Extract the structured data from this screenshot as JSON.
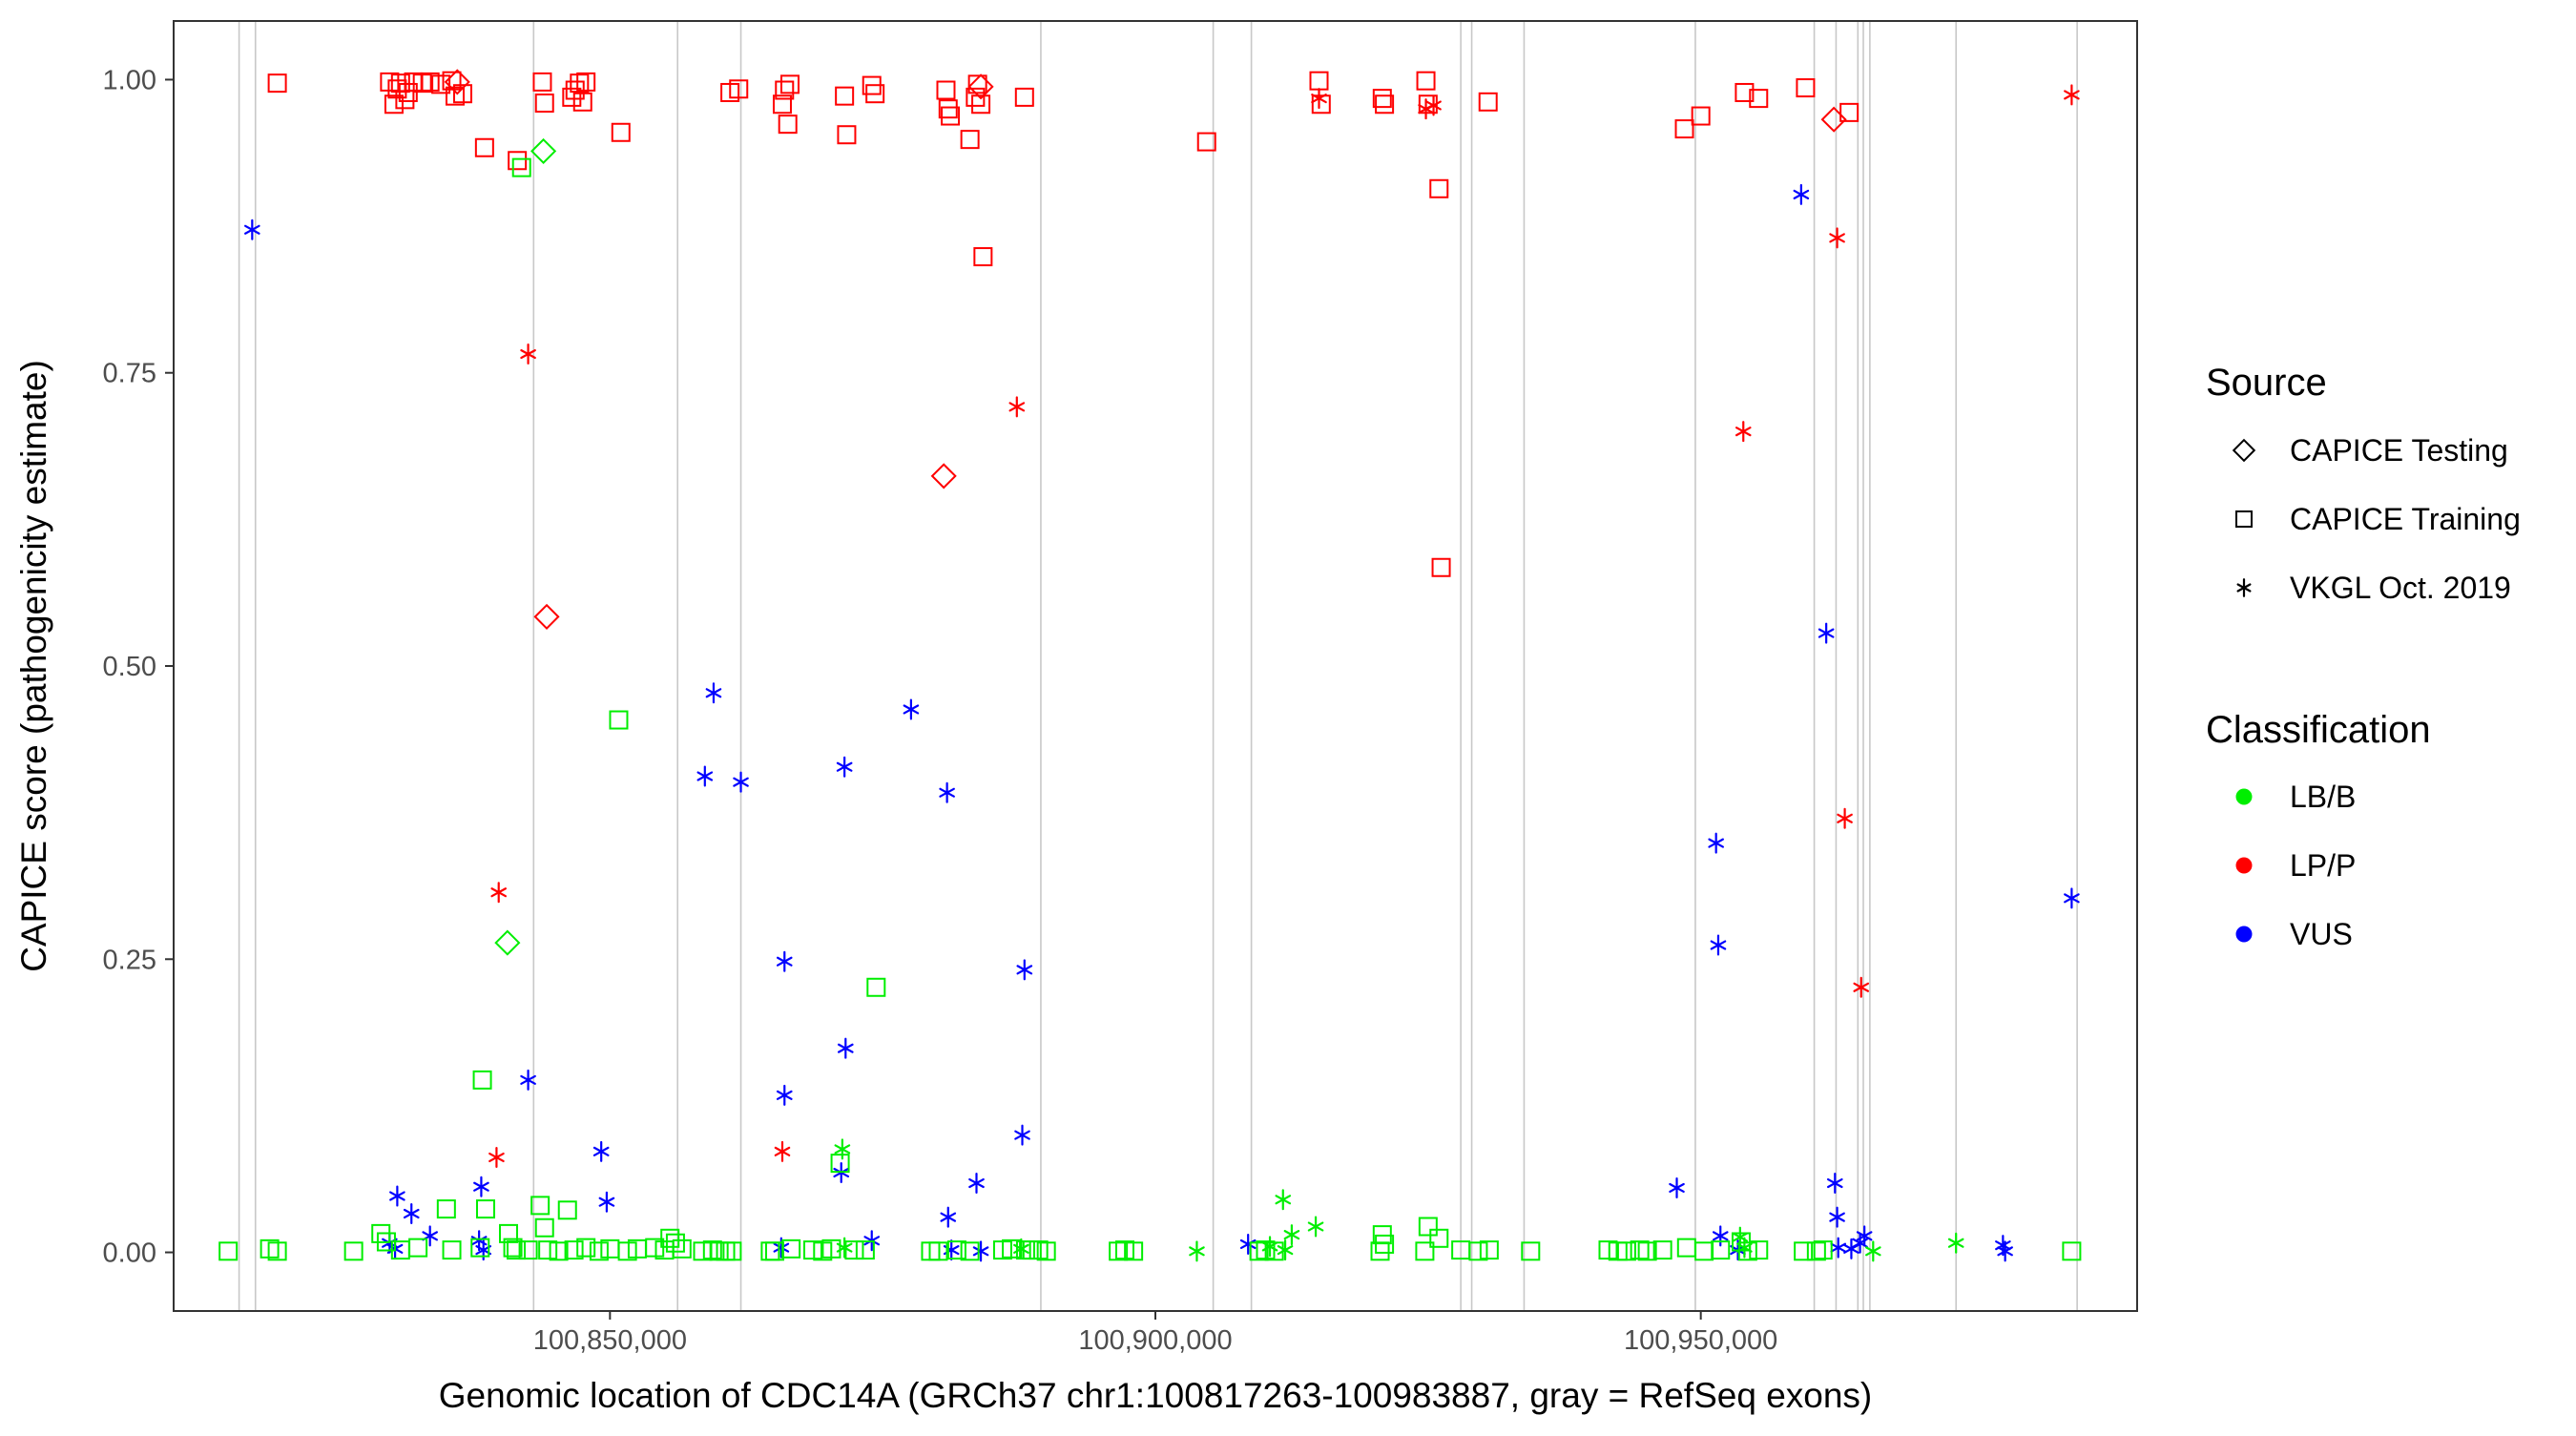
{
  "chart_data": {
    "type": "scatter",
    "title": "",
    "xlabel": "Genomic location of CDC14A (GRCh37 chr1:100817263-100983887, gray = RefSeq exons)",
    "ylabel": "CAPICE score (pathogenicity estimate)",
    "xlim": [
      100810000,
      100990000
    ],
    "ylim": [
      -0.05,
      1.05
    ],
    "x_ticks": [
      100850000,
      100900000,
      100950000
    ],
    "x_tick_labels": [
      "100,850,000",
      "100,900,000",
      "100,950,000"
    ],
    "y_ticks": [
      0.0,
      0.25,
      0.5,
      0.75,
      1.0
    ],
    "y_tick_labels": [
      "0.00",
      "0.25",
      "0.50",
      "0.75",
      "1.00"
    ],
    "grid": false,
    "exon_lines": [
      100816000,
      100817500,
      100843000,
      100856200,
      100862000,
      100889500,
      100905300,
      100908800,
      100928000,
      100929000,
      100933800,
      100949500,
      100960400,
      100962400,
      100964400,
      100964900,
      100965500,
      100973400,
      100984500
    ],
    "legend": {
      "source_title": "Source",
      "source_items": [
        {
          "label": "CAPICE Testing",
          "shape": "diamond"
        },
        {
          "label": "CAPICE Training",
          "shape": "square"
        },
        {
          "label": "VKGL Oct. 2019",
          "shape": "asterisk"
        }
      ],
      "class_title": "Classification",
      "class_items": [
        {
          "label": "LB/B",
          "color": "#00ee00"
        },
        {
          "label": "LP/P",
          "color": "#ff0000"
        },
        {
          "label": "VUS",
          "color": "#0000ff"
        }
      ],
      "placement": "right"
    },
    "series": [
      {
        "name": "CAPICE Training LP/P",
        "shape": "square",
        "color": "#ff0000",
        "x": [
          100819500,
          100829800,
          100830200,
          100830800,
          100831500,
          100832000,
          100832800,
          100833500,
          100834500,
          100835500,
          100836500,
          100830500,
          100831200,
          100835800,
          100838500,
          100841500,
          100843800,
          100844000,
          100846500,
          100846800,
          100847200,
          100847500,
          100847800,
          100851000,
          100861000,
          100861800,
          100865800,
          100866000,
          100866300,
          100866500,
          100871500,
          100871700,
          100874000,
          100874300,
          100880800,
          100881000,
          100881200,
          100883000,
          100883500,
          100883700,
          100884000,
          100884200,
          100888000,
          100904700,
          100915000,
          100915200,
          100920800,
          100921000,
          100924800,
          100925000,
          100926000,
          100926200,
          100930500,
          100948500,
          100950000,
          100954000,
          100955300,
          100959600,
          100963600
        ],
        "y": [
          0.997,
          0.998,
          0.979,
          0.997,
          0.989,
          0.998,
          0.997,
          0.998,
          0.996,
          0.999,
          0.988,
          0.992,
          0.983,
          0.986,
          0.942,
          0.931,
          0.998,
          0.98,
          0.985,
          0.991,
          0.997,
          0.981,
          0.998,
          0.955,
          0.989,
          0.992,
          0.979,
          0.991,
          0.962,
          0.996,
          0.986,
          0.953,
          0.995,
          0.988,
          0.991,
          0.975,
          0.969,
          0.949,
          0.985,
          0.996,
          0.979,
          0.849,
          0.985,
          0.947,
          0.999,
          0.979,
          0.984,
          0.979,
          0.999,
          0.979,
          0.907,
          0.584,
          0.981,
          0.958,
          0.969,
          0.989,
          0.984,
          0.993,
          0.972
        ]
      },
      {
        "name": "CAPICE Testing LP/P",
        "shape": "diamond",
        "color": "#ff0000",
        "x": [
          100836000,
          100844200,
          100880600,
          100884000,
          100962200
        ],
        "y": [
          0.998,
          0.542,
          0.662,
          0.994,
          0.966
        ]
      },
      {
        "name": "VKGL Oct. 2019 LP/P",
        "shape": "asterisk",
        "color": "#ff0000",
        "x": [
          100839800,
          100839600,
          100842500,
          100865800,
          100887300,
          100915000,
          100924800,
          100925500,
          100953900,
          100962500,
          100963200,
          100964700,
          100984000
        ],
        "y": [
          0.307,
          0.081,
          0.766,
          0.086,
          0.721,
          0.984,
          0.975,
          0.978,
          0.7,
          0.865,
          0.37,
          0.226,
          0.987
        ]
      },
      {
        "name": "VKGL Oct. 2019 VUS",
        "shape": "asterisk",
        "color": "#0000ff",
        "x": [
          100817200,
          100830500,
          100829800,
          100830300,
          100831800,
          100833500,
          100838200,
          100838000,
          100838400,
          100842500,
          100849200,
          100849700,
          100858700,
          100859500,
          100862000,
          100865700,
          100866000,
          100866000,
          100871200,
          100871500,
          100871600,
          100874000,
          100877600,
          100880900,
          100881000,
          100881300,
          100883600,
          100884000,
          100887800,
          100888000,
          100908500,
          100947800,
          100951400,
          100951600,
          100951800,
          100953400,
          100959200,
          100961500,
          100962300,
          100962500,
          100962600,
          100963800,
          100964600,
          100965000,
          100977700,
          100977900,
          100984000
        ],
        "y": [
          0.872,
          0.048,
          0.008,
          0.003,
          0.033,
          0.014,
          0.056,
          0.01,
          0.002,
          0.147,
          0.086,
          0.043,
          0.406,
          0.477,
          0.401,
          0.004,
          0.134,
          0.248,
          0.068,
          0.414,
          0.174,
          0.01,
          0.463,
          0.392,
          0.03,
          0.002,
          0.059,
          0.001,
          0.1,
          0.241,
          0.007,
          0.055,
          0.349,
          0.262,
          0.014,
          0.002,
          0.902,
          0.528,
          0.059,
          0.03,
          0.004,
          0.003,
          0.008,
          0.014,
          0.006,
          0.001,
          0.302
        ]
      },
      {
        "name": "CAPICE Training LB/B",
        "shape": "square",
        "color": "#00ee00",
        "x": [
          100815000,
          100818800,
          100819500,
          100826500,
          100829000,
          100829500,
          100830800,
          100832400,
          100835000,
          100835500,
          100838300,
          100838600,
          100838100,
          100840700,
          100841100,
          100841400,
          100841900,
          100842500,
          100843600,
          100844000,
          100844300,
          100845300,
          100846100,
          100846700,
          100847800,
          100849000,
          100850000,
          100850800,
          100851600,
          100852500,
          100854100,
          100855000,
          100855500,
          100856000,
          100856600,
          100858500,
          100859400,
          100860000,
          100860600,
          100861200,
          100864700,
          100865100,
          100866600,
          100868600,
          100869500,
          100870300,
          100871100,
          100872400,
          100873400,
          100874400,
          100879400,
          100880100,
          100881800,
          100883000,
          100886000,
          100886800,
          100888100,
          100888700,
          100889300,
          100890000,
          100896600,
          100897200,
          100898000,
          100909500,
          100910100,
          100910900,
          100920600,
          100920800,
          100921000,
          100924700,
          100925000,
          100926000,
          100928000,
          100929600,
          100930600,
          100934400,
          100941500,
          100942400,
          100943200,
          100944400,
          100945100,
          100946500,
          100948700,
          100950300,
          100951800,
          100953700,
          100954300,
          100955300,
          100959400,
          100960600,
          100961200,
          100984000
        ],
        "y": [
          0.001,
          0.003,
          0.001,
          0.001,
          0.016,
          0.009,
          0.002,
          0.004,
          0.037,
          0.002,
          0.147,
          0.037,
          0.004,
          0.016,
          0.004,
          0.002,
          0.925,
          0.002,
          0.04,
          0.021,
          0.002,
          0.001,
          0.036,
          0.002,
          0.004,
          0.001,
          0.003,
          0.454,
          0.001,
          0.003,
          0.004,
          0.002,
          0.012,
          0.008,
          0.003,
          0.001,
          0.002,
          0.001,
          0.001,
          0.001,
          0.001,
          0.001,
          0.003,
          0.002,
          0.001,
          0.003,
          0.076,
          0.002,
          0.002,
          0.226,
          0.001,
          0.001,
          0.002,
          0.001,
          0.002,
          0.003,
          0.002,
          0.002,
          0.002,
          0.001,
          0.001,
          0.002,
          0.001,
          0.001,
          0.002,
          0.001,
          0.001,
          0.015,
          0.007,
          0.001,
          0.022,
          0.012,
          0.002,
          0.001,
          0.002,
          0.001,
          0.002,
          0.001,
          0.001,
          0.002,
          0.001,
          0.002,
          0.004,
          0.001,
          0.002,
          0.009,
          0.001,
          0.002,
          0.001,
          0.001,
          0.002,
          0.001
        ]
      },
      {
        "name": "CAPICE Testing LB/B",
        "shape": "diamond",
        "color": "#00ee00",
        "x": [
          100840600,
          100843900
        ],
        "y": [
          0.264,
          0.939
        ]
      },
      {
        "name": "VKGL Oct. 2019 LB/B",
        "shape": "asterisk",
        "color": "#00ee00",
        "x": [
          100871300,
          100871500,
          100887700,
          100903800,
          100910500,
          100911700,
          100911900,
          100912500,
          100914700,
          100953600,
          100954000,
          100965800,
          100973400
        ],
        "y": [
          0.088,
          0.004,
          0.003,
          0.001,
          0.005,
          0.045,
          0.002,
          0.015,
          0.022,
          0.013,
          0.004,
          0.001,
          0.008
        ]
      }
    ]
  }
}
